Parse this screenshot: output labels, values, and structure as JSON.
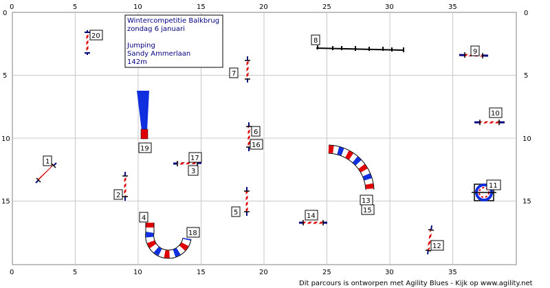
{
  "info": {
    "title": "Wintercompetitie Balkbrug",
    "date": "zondag 6 januari",
    "class": "Jumping",
    "judge": "Sandy Ammerlaan",
    "length": "142m"
  },
  "footer": "Dit parcours is ontworpen met Agility Blues - Kijk op www.agility.net",
  "axes": {
    "x_ticks": [
      "0",
      "5",
      "10",
      "15",
      "20",
      "25",
      "30",
      "35"
    ],
    "y_ticks": [
      "0",
      "5",
      "10",
      "15"
    ]
  },
  "colors": {
    "grid": "#c0c0c0",
    "pole_dark": "#000080",
    "pole_red": "#e00000",
    "tunnel_blue": "#1030e0",
    "tunnel_red": "#e00000",
    "info_text": "#000080"
  },
  "obstacles": {
    "n1": "1",
    "n2": "2",
    "n3": "3",
    "n4": "4",
    "n5": "5",
    "n6": "6",
    "n7": "7",
    "n8": "8",
    "n9": "9",
    "n10": "10",
    "n11": "11",
    "n12": "12",
    "n13": "13",
    "n14": "14",
    "n15": "15",
    "n16": "16",
    "n17": "17",
    "n18": "18",
    "n19": "19",
    "n20": "20"
  }
}
